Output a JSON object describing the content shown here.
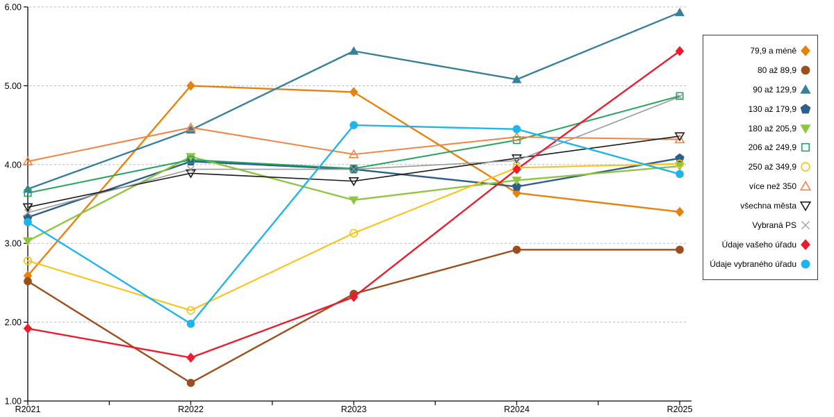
{
  "chart_data": {
    "type": "line",
    "title": "",
    "xlabel": "",
    "ylabel": "",
    "categories": [
      "R2021",
      "R2022",
      "R2023",
      "R2024",
      "R2025"
    ],
    "ylim": [
      1,
      6
    ],
    "ytick_labels": [
      "1.00",
      "2.00",
      "3.00",
      "4.00",
      "5.00",
      "6.00"
    ],
    "grid": "horizontal-dashed",
    "legend_position": "right",
    "axis_color": "#000000",
    "gridline_color": "#b8b8b8",
    "series": [
      {
        "name": "79,9 a méně",
        "marker": "diamond",
        "fill": true,
        "color": "#E8820E",
        "line_weight": "normal",
        "values": [
          2.59,
          5.0,
          4.92,
          3.64,
          3.4
        ]
      },
      {
        "name": "80 až 89,9",
        "marker": "circle",
        "fill": true,
        "color": "#9C4E1B",
        "line_weight": "normal",
        "values": [
          2.52,
          1.23,
          2.36,
          2.92,
          2.92
        ]
      },
      {
        "name": "90 až 129,9",
        "marker": "triangle-up",
        "fill": true,
        "color": "#37809B",
        "line_weight": "normal",
        "values": [
          3.69,
          4.44,
          5.44,
          5.08,
          5.93
        ]
      },
      {
        "name": "130 až 179,9",
        "marker": "pentagon",
        "fill": true,
        "color": "#2E5F8A",
        "line_weight": "normal",
        "values": [
          3.33,
          4.04,
          3.94,
          3.72,
          4.08
        ]
      },
      {
        "name": "180 až 205,9",
        "marker": "triangle-down",
        "fill": true,
        "color": "#8FC640",
        "line_weight": "normal",
        "values": [
          3.03,
          4.1,
          3.55,
          3.8,
          3.98
        ]
      },
      {
        "name": "206 až 249,9",
        "marker": "square",
        "fill": false,
        "color": "#24A45E",
        "line_weight": "medium",
        "values": [
          3.64,
          4.06,
          3.95,
          4.31,
          4.87
        ]
      },
      {
        "name": "250 až 349,9",
        "marker": "circle",
        "fill": false,
        "color": "#FDC010",
        "line_weight": "medium",
        "values": [
          2.78,
          2.15,
          3.13,
          3.96,
          4.01
        ]
      },
      {
        "name": "více než 350",
        "marker": "triangle-up",
        "fill": false,
        "color": "#F58240",
        "line_weight": "medium",
        "values": [
          4.04,
          4.47,
          4.13,
          4.35,
          4.32
        ]
      },
      {
        "name": "všechna města",
        "marker": "triangle-down",
        "fill": false,
        "color": "#1A1A1A",
        "line_weight": "thin",
        "values": [
          3.46,
          3.89,
          3.79,
          4.08,
          4.36
        ]
      },
      {
        "name": "Vybraná PS",
        "marker": "x",
        "fill": false,
        "color": "#9A9A9A",
        "line_weight": "thin",
        "values": [
          3.39,
          3.94,
          3.94,
          4.05,
          4.86
        ]
      },
      {
        "name": "Údaje vašeho úřadu",
        "marker": "diamond",
        "fill": true,
        "color": "#ED1B2E",
        "line_weight": "normal",
        "values": [
          1.92,
          1.55,
          2.32,
          3.94,
          5.44
        ]
      },
      {
        "name": "Údaje vybraného úřadu",
        "marker": "circle",
        "fill": true,
        "color": "#1FB4EC",
        "line_weight": "normal",
        "values": [
          3.27,
          1.98,
          4.5,
          4.45,
          3.88
        ]
      }
    ]
  }
}
